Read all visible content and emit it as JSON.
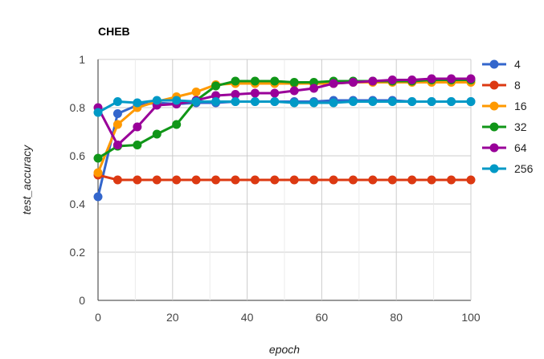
{
  "chart_data": {
    "type": "line",
    "title": "CHEB",
    "xlabel": "epoch",
    "ylabel": "test_accuracy",
    "xlim": [
      0,
      100
    ],
    "ylim": [
      0,
      1
    ],
    "xticks": [
      "0",
      "20",
      "40",
      "60",
      "80",
      "100"
    ],
    "yticks": [
      "0",
      "0.2",
      "0.4",
      "0.6",
      "0.8",
      "1"
    ],
    "grid": true,
    "legend_position": "right",
    "x": [
      0,
      5.26,
      10.53,
      15.79,
      21.05,
      26.32,
      31.58,
      36.84,
      42.11,
      47.37,
      52.63,
      57.89,
      63.16,
      68.42,
      73.68,
      78.95,
      84.21,
      89.47,
      94.74,
      100
    ],
    "series": [
      {
        "name": "4",
        "color": "#3366cc",
        "values": [
          0.43,
          0.775,
          0.81,
          0.82,
          0.815,
          0.82,
          0.82,
          0.825,
          0.825,
          0.825,
          0.825,
          0.825,
          0.83,
          0.83,
          0.83,
          0.83,
          0.825,
          0.825,
          0.825,
          0.825
        ]
      },
      {
        "name": "8",
        "color": "#dc3912",
        "values": [
          0.52,
          0.5,
          0.5,
          0.5,
          0.5,
          0.5,
          0.5,
          0.5,
          0.5,
          0.5,
          0.5,
          0.5,
          0.5,
          0.5,
          0.5,
          0.5,
          0.5,
          0.5,
          0.5,
          0.5
        ]
      },
      {
        "name": "16",
        "color": "#ff9900",
        "values": [
          0.53,
          0.73,
          0.8,
          0.825,
          0.845,
          0.865,
          0.895,
          0.9,
          0.9,
          0.9,
          0.9,
          0.9,
          0.9,
          0.905,
          0.905,
          0.905,
          0.905,
          0.905,
          0.905,
          0.905
        ]
      },
      {
        "name": "32",
        "color": "#109618",
        "values": [
          0.59,
          0.64,
          0.645,
          0.69,
          0.73,
          0.83,
          0.89,
          0.91,
          0.91,
          0.91,
          0.905,
          0.905,
          0.91,
          0.91,
          0.91,
          0.91,
          0.91,
          0.915,
          0.915,
          0.915
        ]
      },
      {
        "name": "64",
        "color": "#990099",
        "values": [
          0.8,
          0.645,
          0.72,
          0.81,
          0.815,
          0.83,
          0.85,
          0.855,
          0.86,
          0.86,
          0.87,
          0.88,
          0.9,
          0.905,
          0.91,
          0.915,
          0.915,
          0.92,
          0.92,
          0.92
        ]
      },
      {
        "name": "256",
        "color": "#0099c6",
        "values": [
          0.78,
          0.825,
          0.82,
          0.83,
          0.83,
          0.825,
          0.825,
          0.825,
          0.825,
          0.825,
          0.82,
          0.82,
          0.82,
          0.825,
          0.825,
          0.825,
          0.825,
          0.825,
          0.825,
          0.825
        ]
      }
    ]
  }
}
